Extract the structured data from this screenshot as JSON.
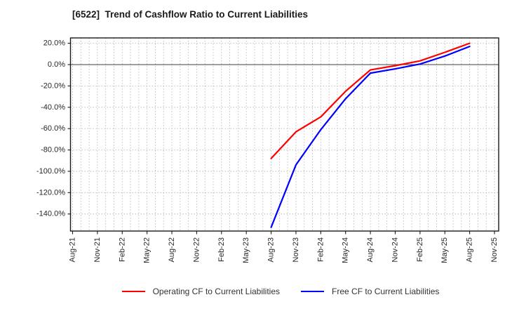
{
  "title": "[6522]  Trend of Cashflow Ratio to Current Liabilities",
  "chart_data": {
    "type": "line",
    "title": "[6522]  Trend of Cashflow Ratio to Current Liabilities",
    "categories": [
      "Aug-21",
      "Nov-21",
      "Feb-22",
      "May-22",
      "Aug-22",
      "Nov-22",
      "Feb-23",
      "May-23",
      "Aug-23",
      "Nov-23",
      "Feb-24",
      "May-24",
      "Aug-24",
      "Nov-24",
      "Feb-25",
      "May-25",
      "Aug-25",
      "Nov-25"
    ],
    "series": [
      {
        "key": "operating-cf",
        "name": "Operating CF to Current Liabilities",
        "color": "#ff0000",
        "values": [
          null,
          null,
          null,
          null,
          null,
          null,
          null,
          null,
          -88,
          -63,
          -49,
          -25,
          -5,
          -1,
          3.5,
          11.5,
          20,
          null
        ]
      },
      {
        "key": "free-cf",
        "name": "Free CF to Current Liabilities",
        "color": "#0000ff",
        "values": [
          null,
          null,
          null,
          null,
          null,
          null,
          null,
          null,
          -152.5,
          -94,
          -61,
          -32,
          -8,
          -4,
          0.5,
          8,
          17,
          null
        ]
      }
    ],
    "ylabel": "",
    "xlabel": "",
    "ylim": [
      -156,
      25
    ],
    "ytick_values": [
      20,
      0,
      -20,
      -40,
      -60,
      -80,
      -100,
      -120,
      -140
    ],
    "ytick_labels": [
      "20.0%",
      "0.0%",
      "-20.0%",
      "-40.0%",
      "-60.0%",
      "-80.0%",
      "-100.0%",
      "-120.0%",
      "-140.0%"
    ],
    "grid": true,
    "minor_x_divisions": 3,
    "legend_position": "bottom",
    "colors": {
      "grid": "#b0b0b0",
      "zero_line": "#666666",
      "spine": "#1a1a1a",
      "tick_label": "#262626",
      "legend_text": "#333333",
      "background": "#ffffff"
    }
  }
}
